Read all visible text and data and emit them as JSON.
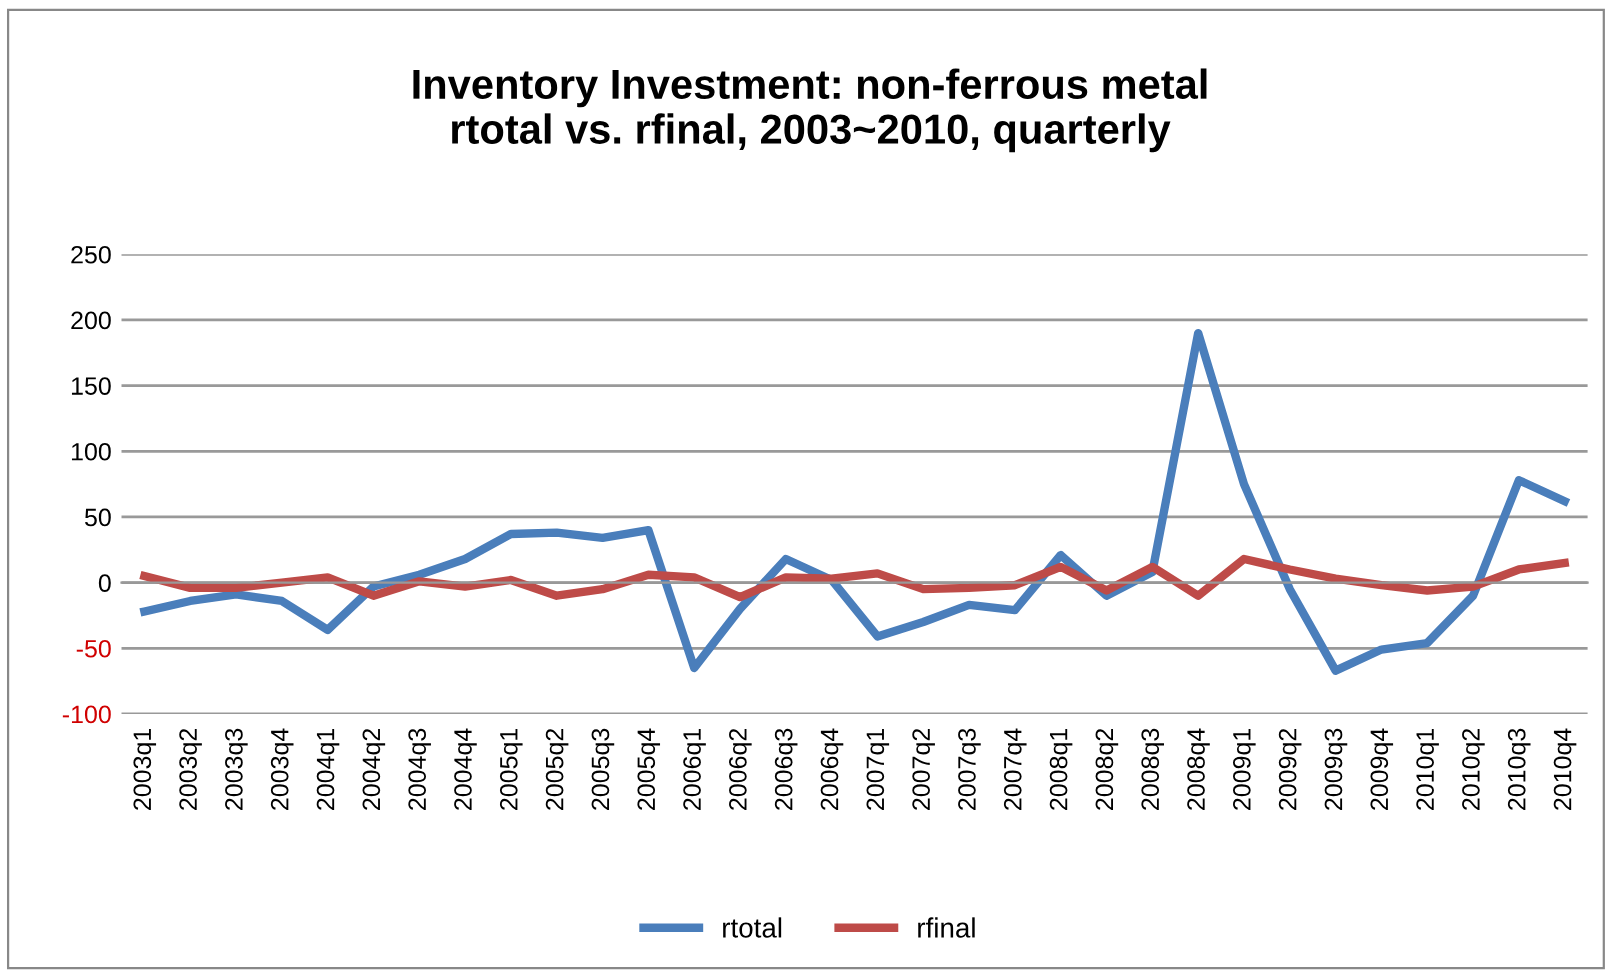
{
  "chart_data": {
    "type": "line",
    "title": "Inventory Investment: non-ferrous metal\nrtotal vs. rfinal, 2003~2010, quarterly",
    "categories": [
      "2003q1",
      "2003q2",
      "2003q3",
      "2003q4",
      "2004q1",
      "2004q2",
      "2004q3",
      "2004q4",
      "2005q1",
      "2005q2",
      "2005q3",
      "2005q4",
      "2006q1",
      "2006q2",
      "2006q3",
      "2006q4",
      "2007q1",
      "2007q2",
      "2007q3",
      "2007q4",
      "2008q1",
      "2008q2",
      "2008q3",
      "2008q4",
      "2009q1",
      "2009q2",
      "2009q3",
      "2009q4",
      "2010q1",
      "2010q2",
      "2010q3",
      "2010q4"
    ],
    "series": [
      {
        "name": "rtotal",
        "color": "#4a7ebb",
        "values": [
          -22,
          -14,
          -9,
          -14,
          -36,
          -3,
          6,
          18,
          37,
          38,
          34,
          40,
          -65,
          -20,
          18,
          2,
          -41,
          -30,
          -17,
          -21,
          21,
          -10,
          8,
          190,
          75,
          -5,
          -67,
          -51,
          -46,
          -10,
          78,
          62
        ]
      },
      {
        "name": "rfinal",
        "color": "#be4b48",
        "values": [
          5,
          -4,
          -4,
          0,
          4,
          -10,
          1,
          -3,
          2,
          -10,
          -5,
          6,
          4,
          -11,
          4,
          3,
          7,
          -5,
          -4,
          -2,
          12,
          -6,
          12,
          -10,
          18,
          10,
          3,
          -2,
          -6,
          -3,
          10,
          15
        ]
      }
    ],
    "ylim": [
      -100,
      250
    ],
    "yticks": [
      -100,
      -50,
      0,
      50,
      100,
      150,
      200,
      250
    ],
    "grid": "y",
    "legend": "bottom",
    "marker": "none",
    "line_style": "solid"
  }
}
